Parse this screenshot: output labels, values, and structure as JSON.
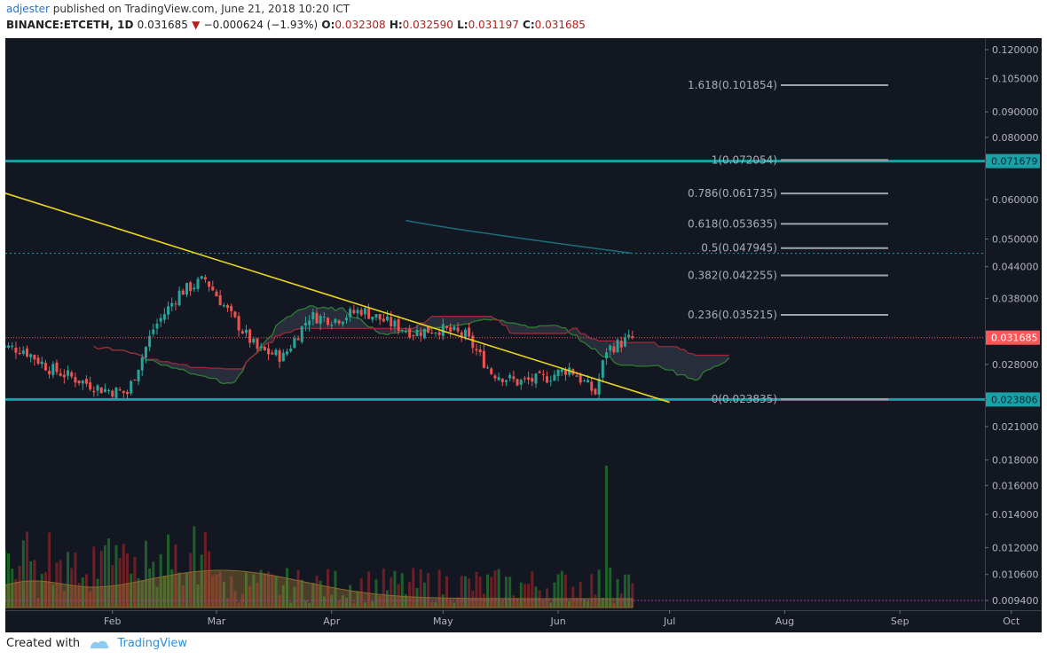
{
  "header": {
    "author": "adjester",
    "published_text": " published on TradingView.com, June 21, 2018 10:20 ICT",
    "symbol": "BINANCE:ETCETH, 1D",
    "last": "0.031685",
    "change_arrow": "▼",
    "change": "−0.000624 (−1.93%)",
    "o_label": "O:",
    "o_value": "0.032308",
    "h_label": "H:",
    "h_value": "0.032590",
    "l_label": "L:",
    "l_value": "0.031197",
    "c_label": "C:",
    "c_value": "0.031685"
  },
  "footer": {
    "created_with": "Created with",
    "brand": "TradingView"
  },
  "colors": {
    "background": "#131722",
    "up": "#26a69a",
    "down": "#ef5350",
    "trendline": "#e8d51f",
    "horizontal_level": "#1aa1a8",
    "fib_line": "#9fa4ab",
    "cloud_upper": "#a0283a",
    "cloud_lower": "#2e7d32",
    "moving_average": "#1b6f7a",
    "price_label_bg": "#ff5555"
  },
  "chart_data": {
    "type": "candlestick",
    "log_scale": true,
    "x_ticks": [
      "Feb",
      "Mar",
      "Apr",
      "May",
      "Jun",
      "Jul",
      "Aug",
      "Sep",
      "Oct"
    ],
    "y_ticks": [
      "0.120000",
      "0.105000",
      "0.090000",
      "0.080000",
      "0.060000",
      "0.050000",
      "0.044000",
      "0.038000",
      "0.028000",
      "0.021000",
      "0.018000",
      "0.016000",
      "0.014000",
      "0.012000",
      "0.010600",
      "0.009400"
    ],
    "price_labels": [
      {
        "text": "0.071679",
        "value": 0.071679,
        "color": "#1aa1a8"
      },
      {
        "text": "0.031685",
        "value": 0.031685,
        "color": "#ff5555"
      },
      {
        "text": "0.023806",
        "value": 0.023806,
        "color": "#1aa1a8"
      }
    ],
    "fib_levels": [
      {
        "label": "1.618(0.101854)",
        "value": 0.101854
      },
      {
        "label": "1(0.072054)",
        "value": 0.072054
      },
      {
        "label": "0.786(0.061735)",
        "value": 0.061735
      },
      {
        "label": "0.618(0.053635)",
        "value": 0.053635
      },
      {
        "label": "0.5(0.047945)",
        "value": 0.047945
      },
      {
        "label": "0.382(0.042255)",
        "value": 0.042255
      },
      {
        "label": "0.236(0.035215)",
        "value": 0.035215
      },
      {
        "label": "0(0.023835)",
        "value": 0.023835
      }
    ],
    "horizontal_levels": [
      0.071679,
      0.023806
    ],
    "dotted_level": 0.0468,
    "trendline": {
      "from": [
        "2018-01-01",
        0.0625
      ],
      "to": [
        "2018-07-01",
        0.0235
      ]
    },
    "last_price": 0.031685,
    "candle_anchor_closes": [
      [
        "2018-01-01",
        0.0305
      ],
      [
        "2018-01-08",
        0.03
      ],
      [
        "2018-01-15",
        0.0275
      ],
      [
        "2018-01-22",
        0.0262
      ],
      [
        "2018-01-29",
        0.025
      ],
      [
        "2018-02-05",
        0.0245
      ],
      [
        "2018-02-12",
        0.033
      ],
      [
        "2018-02-19",
        0.039
      ],
      [
        "2018-02-26",
        0.0415
      ],
      [
        "2018-03-05",
        0.035
      ],
      [
        "2018-03-12",
        0.03
      ],
      [
        "2018-03-19",
        0.029
      ],
      [
        "2018-03-26",
        0.035
      ],
      [
        "2018-04-02",
        0.0345
      ],
      [
        "2018-04-09",
        0.036
      ],
      [
        "2018-04-16",
        0.034
      ],
      [
        "2018-04-23",
        0.0325
      ],
      [
        "2018-04-30",
        0.033
      ],
      [
        "2018-05-07",
        0.032
      ],
      [
        "2018-05-14",
        0.027
      ],
      [
        "2018-05-21",
        0.0258
      ],
      [
        "2018-05-28",
        0.0262
      ],
      [
        "2018-06-04",
        0.0275
      ],
      [
        "2018-06-11",
        0.0245
      ],
      [
        "2018-06-14",
        0.03
      ],
      [
        "2018-06-21",
        0.031685
      ]
    ],
    "volume_peak_date": "2018-06-14"
  }
}
